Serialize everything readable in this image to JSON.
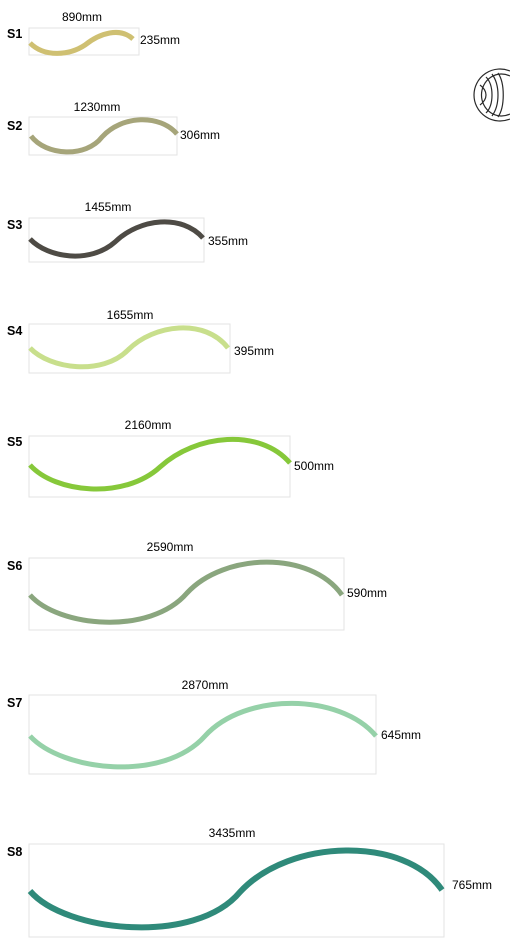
{
  "segments": [
    {
      "id": "S1",
      "length": "890mm",
      "height": "235mm",
      "color": "#cfc072"
    },
    {
      "id": "S2",
      "length": "1230mm",
      "height": "306mm",
      "color": "#a6a57a"
    },
    {
      "id": "S3",
      "length": "1455mm",
      "height": "355mm",
      "color": "#4e4b45"
    },
    {
      "id": "S4",
      "length": "1655mm",
      "height": "395mm",
      "color": "#c8df8c"
    },
    {
      "id": "S5",
      "length": "2160mm",
      "height": "500mm",
      "color": "#86c83a"
    },
    {
      "id": "S6",
      "length": "2590mm",
      "height": "590mm",
      "color": "#8aa67e"
    },
    {
      "id": "S7",
      "length": "2870mm",
      "height": "645mm",
      "color": "#95d1a8"
    },
    {
      "id": "S8",
      "length": "3435mm",
      "height": "765mm",
      "color": "#2f8a7a"
    }
  ],
  "box_color": "#e3e3e3",
  "coil_icon": "coiled-tube-icon"
}
